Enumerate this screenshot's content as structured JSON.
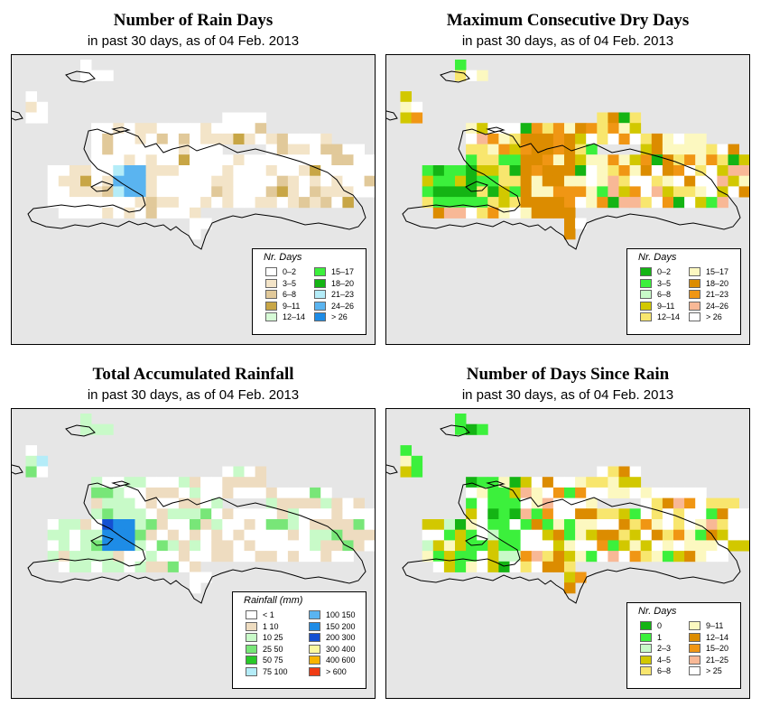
{
  "panels": [
    {
      "id": "rain_days",
      "title": "Number of Rain Days",
      "subtitle": "in past 30 days, as of  04 Feb. 2013",
      "legend": {
        "title": "Nr. Days",
        "items": [
          {
            "label": "0–2",
            "color": "#ffffff"
          },
          {
            "label": "3–5",
            "color": "#f3e4c8"
          },
          {
            "label": "6–8",
            "color": "#e1c99a"
          },
          {
            "label": "9–11",
            "color": "#c8a646"
          },
          {
            "label": "12–14",
            "color": "#d6fad6"
          },
          {
            "label": "15–17",
            "color": "#3cf03c"
          },
          {
            "label": "18–20",
            "color": "#14b414"
          },
          {
            "label": "21–23",
            "color": "#b4ecf8"
          },
          {
            "label": "24–26",
            "color": "#5ab4f0"
          },
          {
            "label": "> 26",
            "color": "#1e8ce6"
          }
        ]
      }
    },
    {
      "id": "max_dry",
      "title": "Maximum Consecutive Dry Days",
      "subtitle": "in past 30 days, as of  04 Feb. 2013",
      "legend": {
        "title": "Nr. Days",
        "items": [
          {
            "label": "0–2",
            "color": "#14b414"
          },
          {
            "label": "3–5",
            "color": "#3cf03c"
          },
          {
            "label": "6–8",
            "color": "#c8fac8"
          },
          {
            "label": "9–11",
            "color": "#d2c800"
          },
          {
            "label": "12–14",
            "color": "#f8e66e"
          },
          {
            "label": "15–17",
            "color": "#fcf8c0"
          },
          {
            "label": "18–20",
            "color": "#dc8c00"
          },
          {
            "label": "21–23",
            "color": "#f09614"
          },
          {
            "label": "24–26",
            "color": "#f8b896"
          },
          {
            "label": "> 26",
            "color": "#ffffff"
          }
        ]
      }
    },
    {
      "id": "total_rain",
      "title": "Total Accumulated Rainfall",
      "subtitle": "in past 30 days, as of  04 Feb. 2013",
      "legend": {
        "title": "Rainfall (mm)",
        "items": [
          {
            "label": "< 1",
            "color": "#ffffff"
          },
          {
            "label": "1    10",
            "color": "#eedcc0"
          },
          {
            "label": "10    25",
            "color": "#c8fac8"
          },
          {
            "label": "25    50",
            "color": "#78e678"
          },
          {
            "label": "50    75",
            "color": "#28c828"
          },
          {
            "label": "75  100",
            "color": "#b4ecf8"
          },
          {
            "label": "100  150",
            "color": "#5ab4f0"
          },
          {
            "label": "150  200",
            "color": "#1e8ce6"
          },
          {
            "label": "200  300",
            "color": "#1450d2"
          },
          {
            "label": "300  400",
            "color": "#fcf8a0"
          },
          {
            "label": "400  600",
            "color": "#f8b400"
          },
          {
            "label": "> 600",
            "color": "#f03c14"
          }
        ]
      }
    },
    {
      "id": "since_rain",
      "title": "Number of Days Since Rain",
      "subtitle": "in past 30 days, as of  04 Feb. 2013",
      "legend": {
        "title": "Nr. Days",
        "items": [
          {
            "label": "0",
            "color": "#14b414"
          },
          {
            "label": "1",
            "color": "#3cf03c"
          },
          {
            "label": "2–3",
            "color": "#c8fac8"
          },
          {
            "label": "4–5",
            "color": "#d2c800"
          },
          {
            "label": "6–8",
            "color": "#f8e66e"
          },
          {
            "label": "9–11",
            "color": "#fcf8c0"
          },
          {
            "label": "12–14",
            "color": "#dc8c00"
          },
          {
            "label": "15–20",
            "color": "#f09614"
          },
          {
            "label": "21–25",
            "color": "#f8b896"
          },
          {
            "label": "> 25",
            "color": "#ffffff"
          }
        ]
      }
    }
  ]
}
